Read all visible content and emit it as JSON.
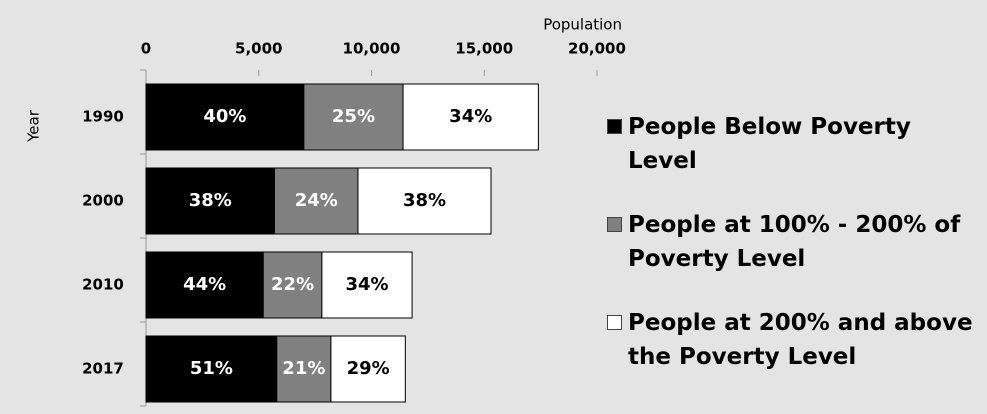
{
  "chart_data": {
    "type": "stacked_barh",
    "x_label": "Population",
    "y_label": "Year",
    "categories": [
      "1990",
      "2000",
      "2010",
      "2017"
    ],
    "series": [
      {
        "name": "People Below Poverty Level",
        "color": "#000000",
        "values": [
          7000,
          5700,
          5200,
          5800
        ],
        "labels": [
          "40%",
          "38%",
          "44%",
          "51%"
        ]
      },
      {
        "name": "People at 100% - 200% of Poverty Level",
        "color": "#808080",
        "values": [
          4400,
          3700,
          2600,
          2400
        ],
        "labels": [
          "25%",
          "24%",
          "22%",
          "21%"
        ]
      },
      {
        "name": "People at 200% and above the Poverty Level",
        "color": "#ffffff",
        "values": [
          6000,
          5900,
          4000,
          3300
        ],
        "labels": [
          "34%",
          "38%",
          "34%",
          "29%"
        ]
      }
    ],
    "xlim": [
      0,
      20000
    ],
    "xticks": [
      0,
      {
        "value": 5000,
        "label": "5,000"
      },
      {
        "value": 10000,
        "label": "10,000"
      },
      {
        "value": 15000,
        "label": "15,000"
      },
      {
        "value": 20000,
        "label": "20,000"
      }
    ],
    "legend": "right"
  }
}
